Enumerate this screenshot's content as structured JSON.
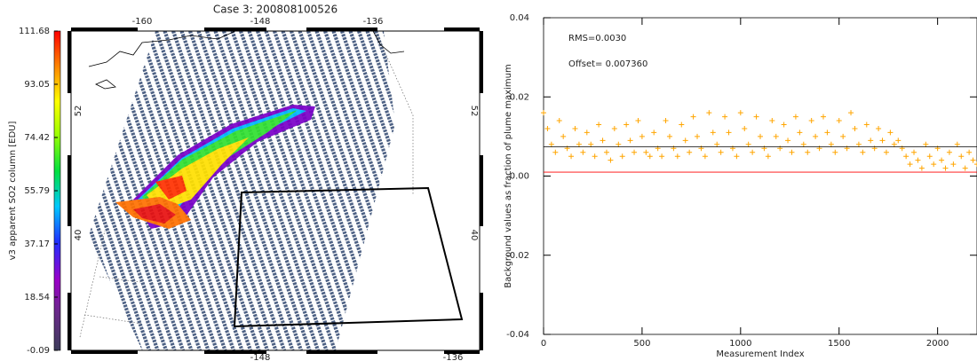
{
  "chart_data": [
    {
      "type": "map",
      "title": "Case 3: 200808100526",
      "colorbar_label": "v3 apparent SO2 column [EDU]",
      "clim": [
        -0.09,
        111.68
      ],
      "cticks": [
        111.68,
        93.05,
        74.42,
        55.79,
        37.17,
        18.54,
        -0.09
      ],
      "lon_labels_top": [
        -160,
        -148,
        -136
      ],
      "lon_labels_bottom": [
        -148,
        -136
      ],
      "lat_labels": [
        52,
        40
      ]
    },
    {
      "type": "scatter",
      "annotations": [
        "RMS=0.0030",
        "Offset= 0.007360"
      ],
      "xlabel": "Measurement Index",
      "ylabel": "Background values as fraction of plume maximum",
      "xlim": [
        0,
        2200
      ],
      "xticks": [
        0,
        500,
        1000,
        1500,
        2000
      ],
      "ylim": [
        -0.04,
        0.04
      ],
      "yticks": [
        -0.04,
        -0.02,
        {
          "value": 0,
          "label": "0.00"
        },
        0.02,
        0.04
      ],
      "reference_lines": [
        {
          "value": 0.00736,
          "color": "#000000"
        },
        {
          "value": 0.001,
          "color": "#ff0000"
        }
      ],
      "series": [
        {
          "color": "#ffa500",
          "x": [
            0,
            20,
            40,
            60,
            80,
            100,
            120,
            140,
            160,
            180,
            200,
            220,
            240,
            260,
            280,
            300,
            320,
            340,
            360,
            380,
            400,
            420,
            440,
            460,
            480,
            500,
            520,
            540,
            560,
            580,
            600,
            620,
            640,
            660,
            680,
            700,
            720,
            740,
            760,
            780,
            800,
            820,
            840,
            860,
            880,
            900,
            920,
            940,
            960,
            980,
            1000,
            1020,
            1040,
            1060,
            1080,
            1100,
            1120,
            1140,
            1160,
            1180,
            1200,
            1220,
            1240,
            1260,
            1280,
            1300,
            1320,
            1340,
            1360,
            1380,
            1400,
            1420,
            1440,
            1460,
            1480,
            1500,
            1520,
            1540,
            1560,
            1580,
            1600,
            1620,
            1640,
            1660,
            1680,
            1700,
            1720,
            1740,
            1760,
            1780,
            1800,
            1820,
            1840,
            1860,
            1880,
            1900,
            1920,
            1940,
            1960,
            1980,
            2000,
            2020,
            2040,
            2060,
            2080,
            2100,
            2120,
            2140,
            2160,
            2180,
            2200
          ],
          "values": [
            0.016,
            0.012,
            0.008,
            0.006,
            0.014,
            0.01,
            0.007,
            0.005,
            0.012,
            0.008,
            0.006,
            0.011,
            0.008,
            0.005,
            0.013,
            0.009,
            0.006,
            0.004,
            0.012,
            0.008,
            0.005,
            0.013,
            0.009,
            0.006,
            0.014,
            0.01,
            0.006,
            0.005,
            0.011,
            0.007,
            0.005,
            0.014,
            0.01,
            0.007,
            0.005,
            0.013,
            0.009,
            0.006,
            0.015,
            0.01,
            0.007,
            0.005,
            0.016,
            0.011,
            0.008,
            0.006,
            0.015,
            0.011,
            0.007,
            0.005,
            0.016,
            0.012,
            0.008,
            0.006,
            0.015,
            0.01,
            0.007,
            0.005,
            0.014,
            0.01,
            0.007,
            0.013,
            0.009,
            0.006,
            0.015,
            0.011,
            0.008,
            0.006,
            0.014,
            0.01,
            0.007,
            0.015,
            0.011,
            0.008,
            0.006,
            0.014,
            0.01,
            0.007,
            0.016,
            0.012,
            0.008,
            0.006,
            0.013,
            0.009,
            0.007,
            0.012,
            0.009,
            0.006,
            0.011,
            0.008,
            0.009,
            0.007,
            0.005,
            0.003,
            0.006,
            0.004,
            0.002,
            0.008,
            0.005,
            0.003,
            0.007,
            0.004,
            0.002,
            0.006,
            0.003,
            0.008,
            0.005,
            0.002,
            0.006,
            0.004,
            0.003
          ]
        }
      ]
    }
  ]
}
